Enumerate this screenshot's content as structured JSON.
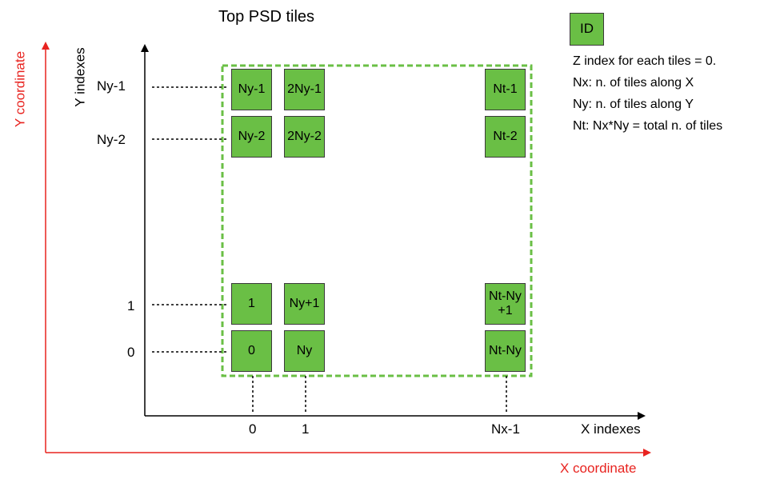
{
  "title": "Top PSD tiles",
  "axes": {
    "y_coordinate_label": "Y coordinate",
    "x_coordinate_label": "X coordinate",
    "y_index_label": "Y indexes",
    "x_index_label": "X indexes",
    "coordinate_axis_color": "#e8231f"
  },
  "y_ticks": [
    "Ny-1",
    "Ny-2",
    "1",
    "0"
  ],
  "x_ticks": [
    "0",
    "1",
    "Nx-1"
  ],
  "tiles": {
    "r0c0": "Ny-1",
    "r0c1": "2Ny-1",
    "r0c2": "Nt-1",
    "r1c0": "Ny-2",
    "r1c1": "2Ny-2",
    "r1c2": "Nt-2",
    "r2c0": "1",
    "r2c1": "Ny+1",
    "r2c2": "Nt-Ny\n+1",
    "r3c0": "0",
    "r3c1": "Ny",
    "r3c2": "Nt-Ny"
  },
  "tile_color": "#6abf45",
  "region_border_color": "#6abf45",
  "legend": {
    "id_box": "ID",
    "lines": [
      "Z index for each tiles = 0.",
      "Nx: n. of tiles along X",
      "Ny: n. of tiles along Y",
      "Nt: Nx*Ny = total n. of tiles"
    ]
  }
}
